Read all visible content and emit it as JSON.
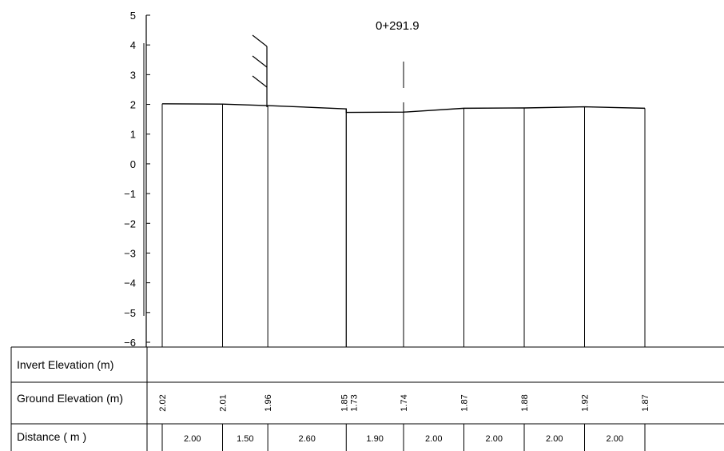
{
  "station_label": "0+291.9",
  "axis": {
    "ylim": [
      -6,
      5
    ],
    "ticks": [
      "5",
      "4",
      "3",
      "2",
      "1",
      "0",
      "−1",
      "−2",
      "−3",
      "−4",
      "−5",
      "−6"
    ]
  },
  "table": {
    "rows": [
      {
        "label": "Invert Elevation (m)"
      },
      {
        "label": "Ground Elevation (m)"
      },
      {
        "label": "Distance ( m )"
      }
    ]
  },
  "chart_data": {
    "type": "line",
    "title": "0+291.9",
    "ylim": [
      -6,
      5
    ],
    "ground_profile": {
      "x": [
        0,
        2.0,
        3.5,
        6.1,
        6.1,
        8.0,
        10.0,
        12.0,
        14.0,
        16.0
      ],
      "y": [
        2.02,
        2.01,
        1.96,
        1.85,
        1.73,
        1.74,
        1.87,
        1.88,
        1.92,
        1.87
      ],
      "labels": [
        "2.02",
        "2.01",
        "1.96",
        "1.85",
        "1.73",
        "1.74",
        "1.87",
        "1.88",
        "1.92",
        "1.87"
      ]
    },
    "distances": [
      "2.00",
      "1.50",
      "2.60",
      "1.90",
      "2.00",
      "2.00",
      "2.00",
      "2.00"
    ],
    "invert_elevation": []
  }
}
